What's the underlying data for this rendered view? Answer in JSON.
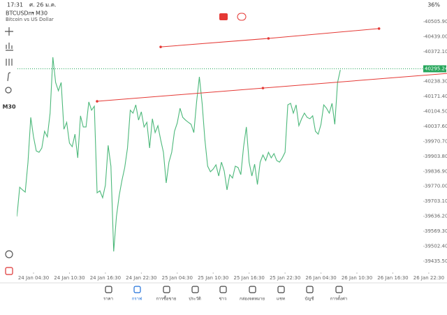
{
  "status_bar": {
    "time": "17:31",
    "date": "ศ. 26 ม.ค.",
    "battery": "36%"
  },
  "header": {
    "symbol": "BTCUSDm",
    "timeframe": "M30",
    "description": "Bitcoin vs US Dollar"
  },
  "toolbar": {
    "timeframe": "M30"
  },
  "nav": {
    "items": [
      {
        "label": "ราคา",
        "active": false
      },
      {
        "label": "กราฟ",
        "active": true
      },
      {
        "label": "การซื้อขาย",
        "active": false
      },
      {
        "label": "ประวัติ",
        "active": false
      },
      {
        "label": "ข่าว",
        "active": false
      },
      {
        "label": "กล่องจดหมาย",
        "active": false
      },
      {
        "label": "แชท",
        "active": false
      },
      {
        "label": "บัญชี",
        "active": false
      },
      {
        "label": "การตั้งค่า",
        "active": false
      }
    ]
  },
  "chart_data": {
    "type": "line",
    "color": "#4cb87a",
    "values": [
      39635,
      39766,
      39754,
      39744,
      39878,
      40078,
      39991,
      39928,
      39922,
      39941,
      40016,
      39991,
      40097,
      40347,
      40234,
      40197,
      40234,
      40025,
      40056,
      39963,
      39947,
      40003,
      39897,
      40085,
      40035,
      40035,
      40147,
      40110,
      40128,
      39741,
      39750,
      39719,
      39775,
      39953,
      39860,
      39479,
      39635,
      39729,
      39797,
      39854,
      39941,
      40110,
      40097,
      40134,
      40066,
      40103,
      40035,
      40056,
      39941,
      40072,
      40010,
      40041,
      39978,
      39922,
      39785,
      39878,
      39922,
      40016,
      40053,
      40119,
      40078,
      40066,
      40056,
      40047,
      40010,
      40147,
      40259,
      40141,
      39978,
      39860,
      39835,
      39847,
      39866,
      39816,
      39878,
      39838,
      39754,
      39822,
      39807,
      39860,
      39854,
      39822,
      39947,
      40035,
      39878,
      39816,
      39869,
      39778,
      39878,
      39910,
      39885,
      39922,
      39897,
      39916,
      39885,
      39878,
      39897,
      39922,
      40134,
      40141,
      40097,
      40134,
      40041,
      40072,
      40097,
      40078,
      40072,
      40085,
      40016,
      40003,
      40047,
      40134,
      40119,
      40097,
      40141,
      40047,
      40234,
      40290
    ],
    "xlim": [
      0,
      147
    ],
    "xticks": [
      {
        "value": 6,
        "label": "24 Jan 04:30"
      },
      {
        "value": 19,
        "label": "24 Jan 10:30"
      },
      {
        "value": 32,
        "label": "24 Jan 16:30"
      },
      {
        "value": 45,
        "label": "24 Jan 22:30"
      },
      {
        "value": 58,
        "label": "25 Jan 04:30"
      },
      {
        "value": 71,
        "label": "25 Jan 10:30"
      },
      {
        "value": 84,
        "label": "25 Jan 16:30"
      },
      {
        "value": 97,
        "label": "25 Jan 22:30"
      },
      {
        "value": 110,
        "label": "26 Jan 04:30"
      },
      {
        "value": 123,
        "label": "26 Jan 10:30"
      },
      {
        "value": 136,
        "label": "26 Jan 16:30"
      },
      {
        "value": 149,
        "label": "26 Jan 22:30"
      }
    ],
    "ylim": [
      39385.2,
      40602.7
    ],
    "yticks": [
      {
        "value": 40505.9,
        "label": "40505.90"
      },
      {
        "value": 40439,
        "label": "40439.00"
      },
      {
        "value": 40372.1,
        "label": "40372.10"
      },
      {
        "value": 40238.3,
        "label": "40238.30"
      },
      {
        "value": 40171.4,
        "label": "40171.40"
      },
      {
        "value": 40104.5,
        "label": "40104.50"
      },
      {
        "value": 40037.6,
        "label": "40037.60"
      },
      {
        "value": 39970.7,
        "label": "39970.70"
      },
      {
        "value": 39903.8,
        "label": "39903.80"
      },
      {
        "value": 39836.9,
        "label": "39836.90"
      },
      {
        "value": 39770,
        "label": "39770.00"
      },
      {
        "value": 39703.1,
        "label": "39703.10"
      },
      {
        "value": 39636.2,
        "label": "39636.20"
      },
      {
        "value": 39569.3,
        "label": "39569.30"
      },
      {
        "value": 39502.4,
        "label": "39502.40"
      },
      {
        "value": 39435.5,
        "label": "39435.50"
      }
    ],
    "last_price": 40295.24,
    "last_price_color": "#26a65b",
    "trendlines": [
      {
        "color": "#e53935",
        "extend_right": false,
        "points": [
          {
            "x": 52,
            "y": 40393
          },
          {
            "x": 91,
            "y": 40431
          },
          {
            "x": 131,
            "y": 40475
          }
        ]
      },
      {
        "color": "#e53935",
        "extend_right": true,
        "points": [
          {
            "x": 29,
            "y": 40150
          },
          {
            "x": 89,
            "y": 40209
          }
        ]
      }
    ]
  }
}
